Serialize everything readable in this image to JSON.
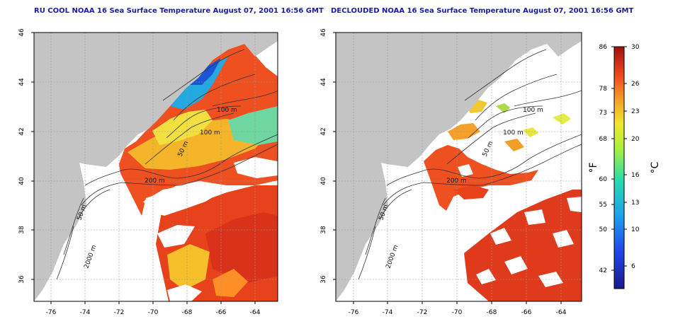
{
  "colors": {
    "title": "#1a1aa8",
    "land": "#c4c4c4",
    "water": "#ffffff",
    "contour": "#333333",
    "grid": "#9a9a9a"
  },
  "maps": [
    {
      "title": "RU COOL NOAA 16 Sea Surface Temperature August 07, 2001 16:56 GMT",
      "variant": "raw",
      "x_ticks": [
        "-76",
        "-74",
        "-72",
        "-70",
        "-68",
        "-66",
        "-64"
      ],
      "y_ticks": [
        "46",
        "44",
        "42",
        "40",
        "38",
        "36"
      ],
      "contour_labels": [
        "100 m",
        "100 m",
        "50 m",
        "200 m",
        "50 m",
        "2000 m"
      ]
    },
    {
      "title": "DECLOUDED NOAA 16 Sea Surface Temperature August 07, 2001 16:56 GMT",
      "variant": "declouded",
      "x_ticks": [
        "-76",
        "-74",
        "-72",
        "-70",
        "-68",
        "-66",
        "-64"
      ],
      "y_ticks": [
        "46",
        "44",
        "42",
        "40",
        "38",
        "36"
      ],
      "contour_labels": [
        "100 m",
        "100 m",
        "50 m",
        "200 m",
        "50 m",
        "2000 m"
      ]
    }
  ],
  "colorbar": {
    "fahrenheit_ticks": [
      "86",
      "78",
      "73",
      "68",
      "60",
      "55",
      "50",
      "42"
    ],
    "celsius_ticks": [
      "30",
      "26",
      "23",
      "20",
      "16",
      "13",
      "10",
      "6"
    ],
    "fahrenheit_label": "°F",
    "celsius_label": "°C"
  }
}
